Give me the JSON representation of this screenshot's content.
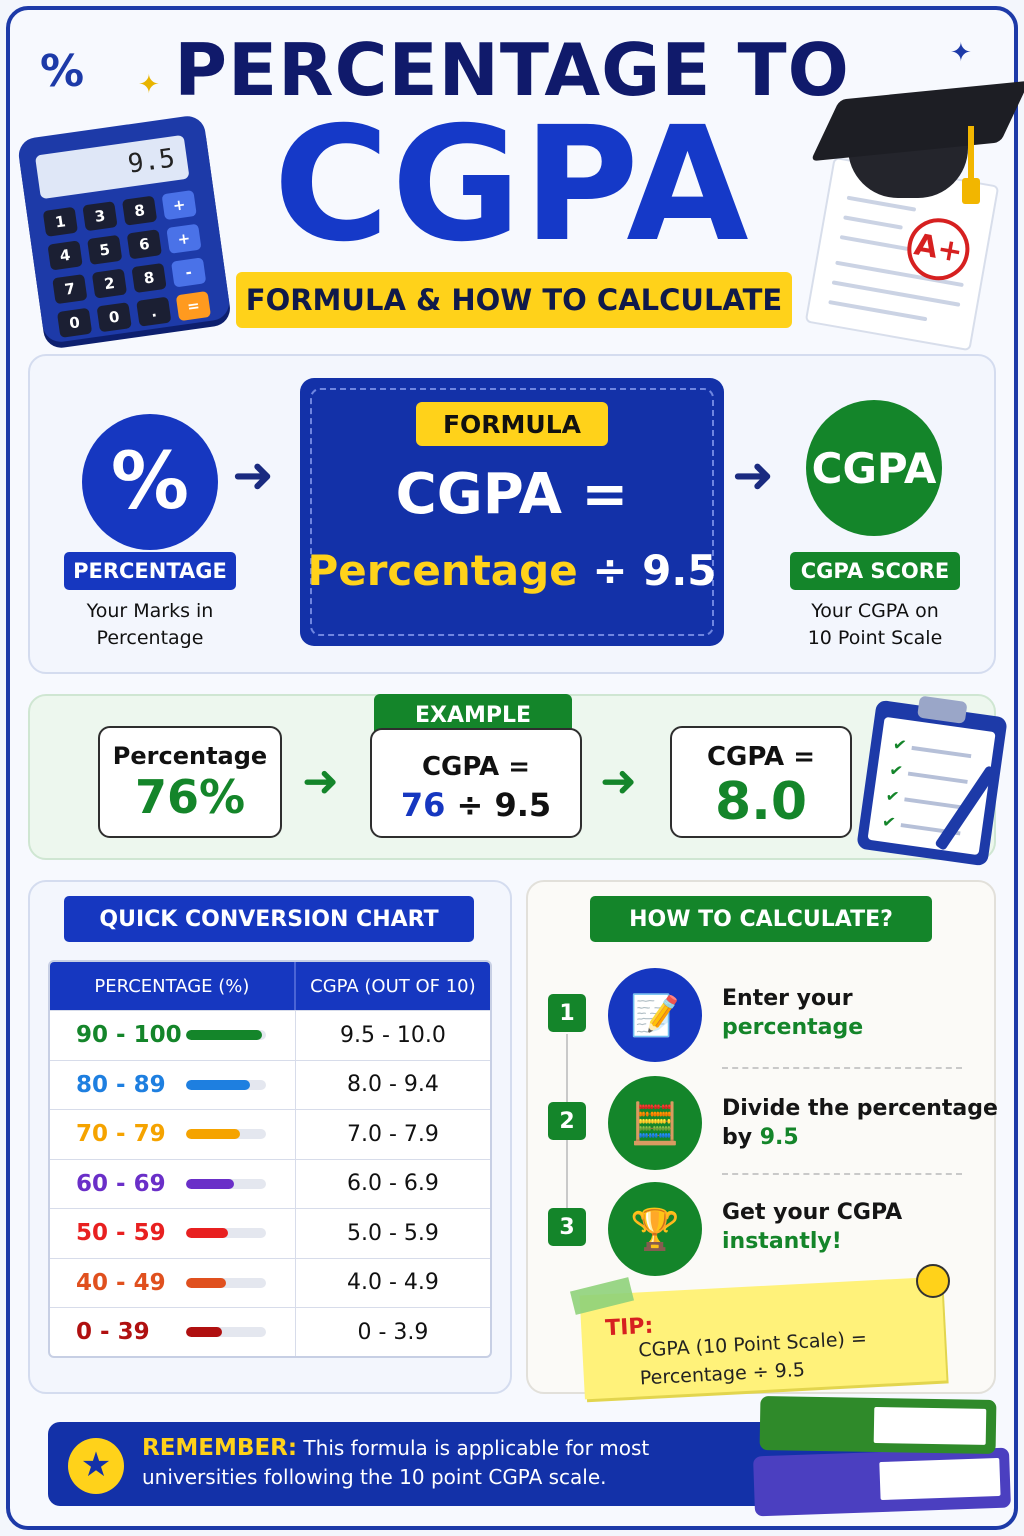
{
  "header": {
    "title_line1": "PERCENTAGE TO",
    "title_line2": "CGPA",
    "subtitle": "FORMULA & HOW TO CALCULATE",
    "calculator_display": "9.5",
    "calculator_keys": [
      "1",
      "3",
      "8",
      "+",
      "4",
      "5",
      "6",
      "+",
      "7",
      "2",
      "8",
      "-",
      "0",
      "0",
      ".",
      "="
    ],
    "percent_symbol": "%",
    "grade": "A+"
  },
  "formula": {
    "left_icon": "%",
    "left_label": "PERCENTAGE",
    "left_caption_l1": "Your Marks in",
    "left_caption_l2": "Percentage",
    "tag": "FORMULA",
    "line1": "CGPA =",
    "line2_main": "Percentage",
    "line2_op": "÷ 9.5",
    "right_icon_text": "CGPA",
    "right_label": "CGPA SCORE",
    "right_caption_l1": "Your CGPA on",
    "right_caption_l2": "10 Point Scale",
    "arrow": "➜"
  },
  "example": {
    "tag": "EXAMPLE",
    "card1_label": "Percentage",
    "card1_value": "76%",
    "card2_label": "CGPA =",
    "card2_num": "76",
    "card2_op": "÷ 9.5",
    "card3_label": "CGPA =",
    "card3_value": "8.0",
    "arrow": "➜",
    "check": "✔"
  },
  "chart": {
    "title": "QUICK CONVERSION CHART",
    "col1": "PERCENTAGE (%)",
    "col2": "CGPA (OUT OF 10)",
    "rows": [
      {
        "range": "90 - 100",
        "cgpa": "9.5 - 10.0",
        "color": "#14852a",
        "level": 0.95
      },
      {
        "range": "80 - 89",
        "cgpa": "8.0 - 9.4",
        "color": "#1e7fe0",
        "level": 0.8
      },
      {
        "range": "70 - 79",
        "cgpa": "7.0 - 7.9",
        "color": "#f5a300",
        "level": 0.68
      },
      {
        "range": "60 - 69",
        "cgpa": "6.0 - 6.9",
        "color": "#6a2fc8",
        "level": 0.6
      },
      {
        "range": "50 - 59",
        "cgpa": "5.0 - 5.9",
        "color": "#e82020",
        "level": 0.52
      },
      {
        "range": "40 - 49",
        "cgpa": "4.0 - 4.9",
        "color": "#e0501e",
        "level": 0.5
      },
      {
        "range": "0 - 39",
        "cgpa": "0 - 3.9",
        "color": "#b01010",
        "level": 0.45
      }
    ]
  },
  "steps": {
    "title": "HOW TO CALCULATE?",
    "items": [
      {
        "num": "1",
        "text1": "Enter your",
        "text2": "percentage",
        "icon": "📝",
        "bg": "#1637c0"
      },
      {
        "num": "2",
        "text1": "Divide the percentage",
        "text2_pre": "by ",
        "text2": "9.5",
        "icon": "🧮",
        "bg": "#14852a"
      },
      {
        "num": "3",
        "text1": "Get your CGPA",
        "text2": "instantly!",
        "icon": "🏆",
        "bg": "#14852a"
      }
    ],
    "tip_label": "TIP:",
    "tip_l1": "CGPA (10 Point Scale) =",
    "tip_l2": "Percentage ÷ 9.5"
  },
  "footer": {
    "label": "REMEMBER:",
    "text_l1": "This formula is applicable for most",
    "text_l2": "universities following the 10 point CGPA scale.",
    "star": "★"
  },
  "colors": {
    "primary_blue": "#1637c0",
    "navy": "#101a6b",
    "green": "#14852a",
    "yellow": "#ffd21a"
  }
}
